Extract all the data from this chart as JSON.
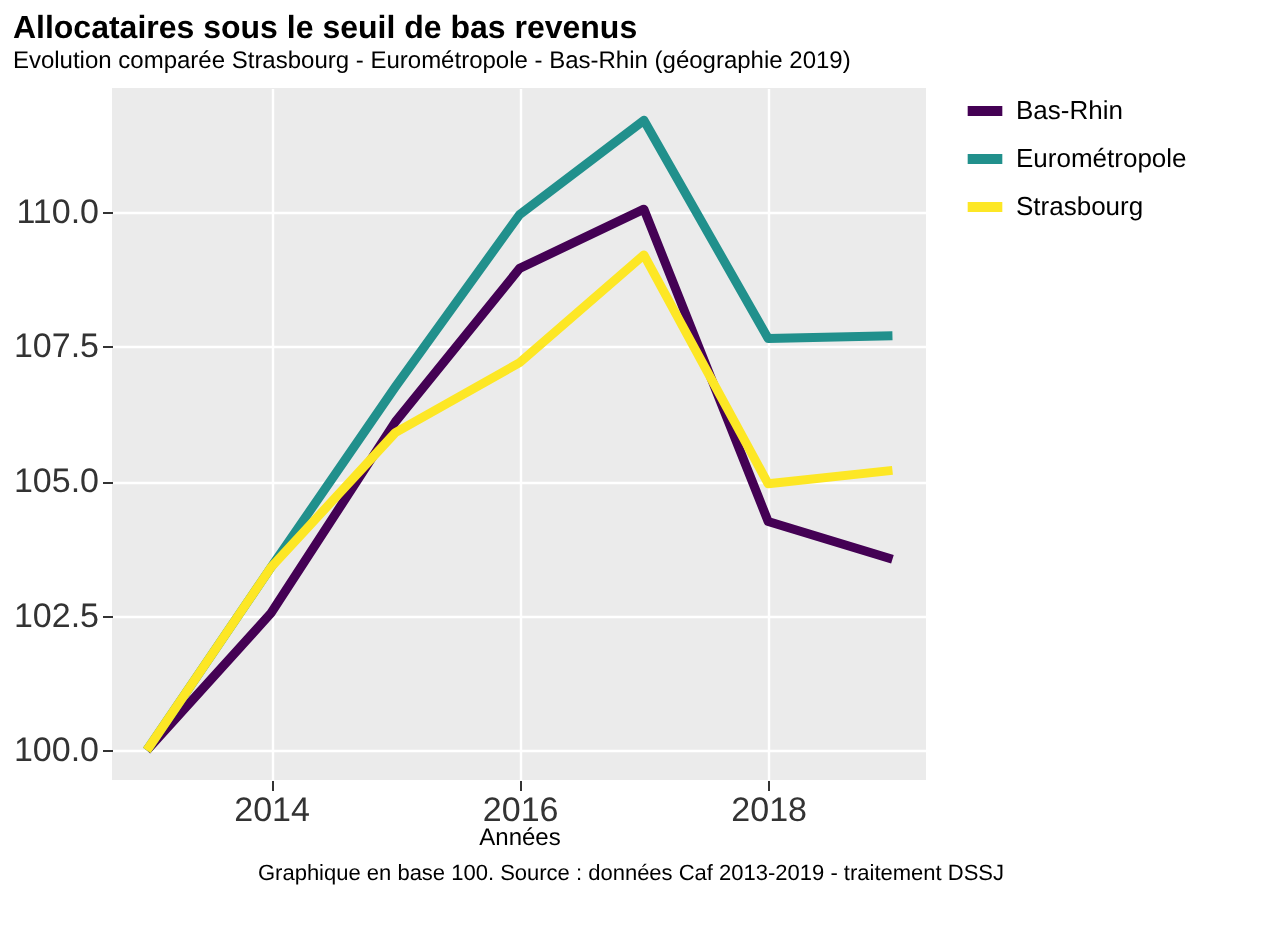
{
  "chart_data": {
    "type": "line",
    "title": "Allocataires sous le seuil de bas revenus",
    "subtitle": "Evolution comparée Strasbourg - Eurométropole - Bas-Rhin (géographie 2019)",
    "xlabel": "Années",
    "annotations": [
      "Graphique en base 100. Source : données Caf 2013-2019 - traitement DSSJ"
    ],
    "x": [
      2013,
      2014,
      2015,
      2016,
      2017,
      2018,
      2019
    ],
    "series": [
      {
        "name": "Bas-Rhin",
        "color": "#440154",
        "values": [
          100,
          102.55,
          106.1,
          108.95,
          110.05,
          104.25,
          103.55
        ]
      },
      {
        "name": "Eurométropole",
        "color": "#21908c",
        "values": [
          100,
          103.4,
          106.75,
          109.95,
          111.7,
          107.65,
          107.7
        ]
      },
      {
        "name": "Strasbourg",
        "color": "#fde725",
        "values": [
          100,
          103.4,
          105.9,
          107.2,
          109.2,
          104.95,
          105.2
        ]
      }
    ],
    "xlim": [
      2012.72,
      2019.27
    ],
    "xticks": [
      2014,
      2016,
      2018
    ],
    "ylim": [
      99.45,
      112.3
    ],
    "yticks": [
      {
        "value": 100,
        "label": "100.0"
      },
      {
        "value": 102.5,
        "label": "102.5"
      },
      {
        "value": 105,
        "label": "105.0"
      },
      {
        "value": 107.5,
        "label": "107.5"
      },
      {
        "value": 110,
        "label": "110.0"
      }
    ],
    "grid": true,
    "legend": "right",
    "line_style": "solid",
    "marker": "none"
  }
}
